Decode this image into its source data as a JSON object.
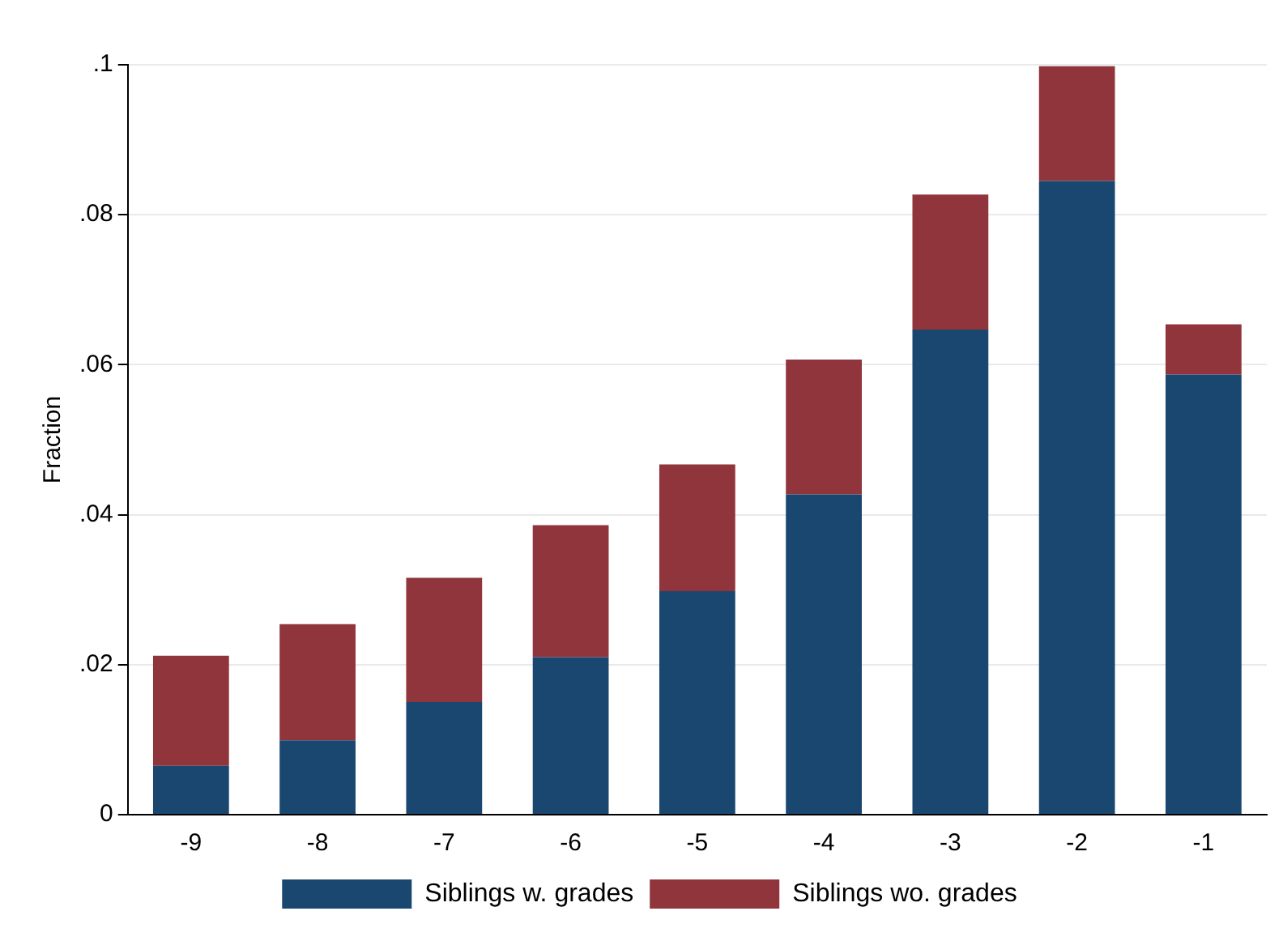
{
  "chart_data": {
    "type": "bar",
    "stacked": true,
    "ylabel": "Fraction",
    "categories": [
      "-9",
      "-8",
      "-7",
      "-6",
      "-5",
      "-4",
      "-3",
      "-2",
      "-1"
    ],
    "series": [
      {
        "name": "Siblings w. grades",
        "color": "#1a476f",
        "values": [
          0.0065,
          0.0099,
          0.015,
          0.021,
          0.0298,
          0.0427,
          0.0647,
          0.0845,
          0.0587
        ]
      },
      {
        "name": "Siblings wo. grades",
        "color": "#90353b",
        "values": [
          0.0147,
          0.0155,
          0.0166,
          0.0176,
          0.0169,
          0.018,
          0.018,
          0.0153,
          0.0067
        ]
      }
    ],
    "ylim": [
      0,
      0.1
    ],
    "yticks": [
      0,
      {
        "value": 0.02,
        "label": ".02"
      },
      {
        "value": 0.04,
        "label": ".04"
      },
      {
        "value": 0.06,
        "label": ".06"
      },
      {
        "value": 0.08,
        "label": ".08"
      },
      {
        "value": 0.1,
        "label": ".1"
      }
    ],
    "grid": "y",
    "legend": "bottom"
  }
}
